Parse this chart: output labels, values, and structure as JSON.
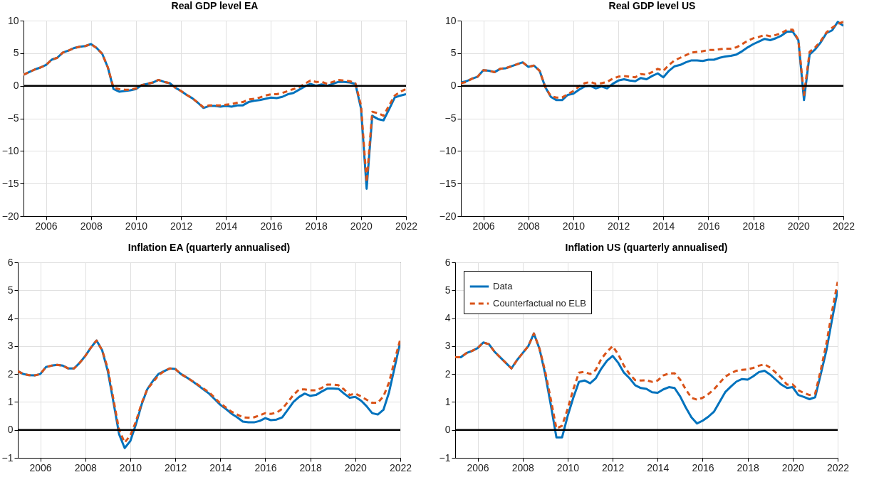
{
  "chart_data": [
    {
      "type": "line",
      "title": "Real GDP level EA",
      "xlim": [
        2005,
        2022
      ],
      "xticks": [
        2006,
        2008,
        2010,
        2012,
        2014,
        2016,
        2018,
        2020,
        2022
      ],
      "ylim": [
        -20,
        10
      ],
      "yticks": [
        -20,
        -15,
        -10,
        -5,
        0,
        5,
        10
      ],
      "grid": true,
      "x": [
        2005,
        2005.25,
        2005.5,
        2005.75,
        2006,
        2006.25,
        2006.5,
        2006.75,
        2007,
        2007.25,
        2007.5,
        2007.75,
        2008,
        2008.25,
        2008.5,
        2008.75,
        2009,
        2009.25,
        2009.5,
        2009.75,
        2010,
        2010.25,
        2010.5,
        2010.75,
        2011,
        2011.25,
        2011.5,
        2011.75,
        2012,
        2012.25,
        2012.5,
        2012.75,
        2013,
        2013.25,
        2013.5,
        2013.75,
        2014,
        2014.25,
        2014.5,
        2014.75,
        2015,
        2015.25,
        2015.5,
        2015.75,
        2016,
        2016.25,
        2016.5,
        2016.75,
        2017,
        2017.25,
        2017.5,
        2017.75,
        2018,
        2018.25,
        2018.5,
        2018.75,
        2019,
        2019.25,
        2019.5,
        2019.75,
        2020,
        2020.25,
        2020.5,
        2020.75,
        2021,
        2021.25,
        2021.5,
        2021.75,
        2022
      ],
      "ref_lines": [
        {
          "axis": "y",
          "value": 0,
          "color": "#000000"
        }
      ],
      "series": [
        {
          "color": "#0072bd",
          "line_style": "solid",
          "values": [
            1.7,
            2.1,
            2.5,
            2.8,
            3.2,
            4.0,
            4.3,
            5.1,
            5.4,
            5.8,
            6.0,
            6.1,
            6.4,
            5.8,
            4.9,
            2.8,
            -0.5,
            -0.9,
            -0.8,
            -0.7,
            -0.5,
            0.1,
            0.3,
            0.5,
            0.9,
            0.6,
            0.4,
            -0.3,
            -0.8,
            -1.4,
            -1.9,
            -2.6,
            -3.4,
            -3.1,
            -3.1,
            -3.2,
            -3.1,
            -3.2,
            -3.0,
            -3.0,
            -2.5,
            -2.3,
            -2.2,
            -2.0,
            -1.8,
            -1.9,
            -1.7,
            -1.3,
            -1.1,
            -0.6,
            -0.1,
            0.3,
            0.0,
            0.2,
            0.0,
            0.3,
            0.6,
            0.6,
            0.5,
            0.3,
            -3.5,
            -15.8,
            -4.6,
            -5.1,
            -5.3,
            -3.6,
            -1.8,
            -1.5,
            -1.3
          ]
        },
        {
          "color": "#d95319",
          "line_style": "dashed",
          "values": [
            1.7,
            2.1,
            2.5,
            2.8,
            3.2,
            4.0,
            4.3,
            5.1,
            5.4,
            5.8,
            6.0,
            6.1,
            6.4,
            5.8,
            4.9,
            2.8,
            -0.3,
            -0.5,
            -0.6,
            -0.6,
            -0.4,
            0.1,
            0.3,
            0.5,
            0.9,
            0.6,
            0.4,
            -0.3,
            -0.8,
            -1.4,
            -1.9,
            -2.6,
            -3.3,
            -3.0,
            -3.0,
            -3.0,
            -2.9,
            -2.8,
            -2.6,
            -2.5,
            -2.1,
            -2.0,
            -1.8,
            -1.5,
            -1.3,
            -1.3,
            -1.1,
            -0.8,
            -0.5,
            -0.2,
            0.3,
            0.8,
            0.6,
            0.6,
            0.3,
            0.6,
            0.9,
            0.8,
            0.7,
            0.4,
            -3.0,
            -14.8,
            -4.0,
            -4.2,
            -4.6,
            -3.0,
            -1.5,
            -0.9,
            -0.5
          ]
        }
      ]
    },
    {
      "type": "line",
      "title": "Real GDP level US",
      "xlim": [
        2005,
        2022
      ],
      "xticks": [
        2006,
        2008,
        2010,
        2012,
        2014,
        2016,
        2018,
        2020,
        2022
      ],
      "ylim": [
        -20,
        10
      ],
      "yticks": [
        -20,
        -15,
        -10,
        -5,
        0,
        5,
        10
      ],
      "grid": true,
      "x": [
        2005,
        2005.25,
        2005.5,
        2005.75,
        2006,
        2006.25,
        2006.5,
        2006.75,
        2007,
        2007.25,
        2007.5,
        2007.75,
        2008,
        2008.25,
        2008.5,
        2008.75,
        2009,
        2009.25,
        2009.5,
        2009.75,
        2010,
        2010.25,
        2010.5,
        2010.75,
        2011,
        2011.25,
        2011.5,
        2011.75,
        2012,
        2012.25,
        2012.5,
        2012.75,
        2013,
        2013.25,
        2013.5,
        2013.75,
        2014,
        2014.25,
        2014.5,
        2014.75,
        2015,
        2015.25,
        2015.5,
        2015.75,
        2016,
        2016.25,
        2016.5,
        2016.75,
        2017,
        2017.25,
        2017.5,
        2017.75,
        2018,
        2018.25,
        2018.5,
        2018.75,
        2019,
        2019.25,
        2019.5,
        2019.75,
        2020,
        2020.25,
        2020.5,
        2020.75,
        2021,
        2021.25,
        2021.5,
        2021.75,
        2022
      ],
      "ref_lines": [
        {
          "axis": "y",
          "value": 0,
          "color": "#000000"
        }
      ],
      "series": [
        {
          "color": "#0072bd",
          "line_style": "solid",
          "values": [
            0.5,
            0.7,
            1.1,
            1.4,
            2.4,
            2.3,
            2.1,
            2.6,
            2.7,
            3.0,
            3.3,
            3.6,
            2.9,
            3.1,
            2.3,
            -0.2,
            -1.7,
            -2.2,
            -2.2,
            -1.4,
            -1.2,
            -0.6,
            -0.1,
            0.0,
            -0.4,
            -0.1,
            -0.4,
            0.3,
            0.8,
            1.0,
            0.8,
            0.7,
            1.2,
            1.0,
            1.5,
            1.9,
            1.3,
            2.3,
            3.0,
            3.2,
            3.6,
            3.9,
            3.9,
            3.8,
            4.0,
            4.0,
            4.3,
            4.5,
            4.6,
            4.8,
            5.3,
            5.9,
            6.4,
            6.8,
            7.2,
            7.0,
            7.3,
            7.7,
            8.3,
            8.3,
            7.0,
            -2.2,
            4.8,
            5.6,
            6.7,
            8.1,
            8.5,
            9.8,
            9.2
          ]
        },
        {
          "color": "#d95319",
          "line_style": "dashed",
          "values": [
            0.4,
            0.6,
            1.1,
            1.4,
            2.4,
            2.3,
            2.1,
            2.6,
            2.7,
            3.0,
            3.3,
            3.6,
            2.9,
            3.1,
            2.3,
            -0.2,
            -1.6,
            -1.8,
            -1.8,
            -1.3,
            -0.8,
            -0.1,
            0.4,
            0.6,
            0.3,
            0.4,
            0.6,
            1.1,
            1.4,
            1.5,
            1.4,
            1.3,
            1.8,
            1.7,
            2.1,
            2.6,
            2.3,
            3.2,
            3.9,
            4.3,
            4.7,
            5.1,
            5.2,
            5.3,
            5.5,
            5.5,
            5.6,
            5.7,
            5.7,
            5.9,
            6.4,
            6.9,
            7.3,
            7.5,
            7.8,
            7.6,
            7.8,
            8.1,
            8.6,
            8.6,
            7.0,
            -1.4,
            5.2,
            5.9,
            6.9,
            8.2,
            8.9,
            9.5,
            9.8
          ]
        }
      ]
    },
    {
      "type": "line",
      "title": "Inflation EA (quarterly annualised)",
      "xlim": [
        2005,
        2022
      ],
      "xticks": [
        2006,
        2008,
        2010,
        2012,
        2014,
        2016,
        2018,
        2020,
        2022
      ],
      "ylim": [
        -1,
        6
      ],
      "yticks": [
        -1,
        0,
        1,
        2,
        3,
        4,
        5,
        6
      ],
      "grid": true,
      "x": [
        2005,
        2005.25,
        2005.5,
        2005.75,
        2006,
        2006.25,
        2006.5,
        2006.75,
        2007,
        2007.25,
        2007.5,
        2007.75,
        2008,
        2008.25,
        2008.5,
        2008.75,
        2009,
        2009.25,
        2009.5,
        2009.75,
        2010,
        2010.25,
        2010.5,
        2010.75,
        2011,
        2011.25,
        2011.5,
        2011.75,
        2012,
        2012.25,
        2012.5,
        2012.75,
        2013,
        2013.25,
        2013.5,
        2013.75,
        2014,
        2014.25,
        2014.5,
        2014.75,
        2015,
        2015.25,
        2015.5,
        2015.75,
        2016,
        2016.25,
        2016.5,
        2016.75,
        2017,
        2017.25,
        2017.5,
        2017.75,
        2018,
        2018.25,
        2018.5,
        2018.75,
        2019,
        2019.25,
        2019.5,
        2019.75,
        2020,
        2020.25,
        2020.5,
        2020.75,
        2021,
        2021.25,
        2021.5,
        2021.75,
        2022
      ],
      "ref_lines": [
        {
          "axis": "y",
          "value": 0,
          "color": "#000000"
        }
      ],
      "series": [
        {
          "color": "#0072bd",
          "line_style": "solid",
          "values": [
            2.1,
            2.0,
            1.96,
            1.95,
            2.0,
            2.25,
            2.3,
            2.33,
            2.3,
            2.2,
            2.2,
            2.4,
            2.65,
            2.95,
            3.2,
            2.85,
            2.1,
            1.0,
            -0.15,
            -0.65,
            -0.4,
            0.2,
            0.9,
            1.45,
            1.75,
            2.0,
            2.1,
            2.2,
            2.18,
            2.0,
            1.88,
            1.75,
            1.6,
            1.45,
            1.3,
            1.1,
            0.9,
            0.75,
            0.58,
            0.45,
            0.3,
            0.27,
            0.27,
            0.32,
            0.42,
            0.35,
            0.37,
            0.45,
            0.72,
            1.0,
            1.18,
            1.3,
            1.22,
            1.25,
            1.37,
            1.48,
            1.48,
            1.47,
            1.3,
            1.15,
            1.18,
            1.05,
            0.85,
            0.6,
            0.55,
            0.72,
            1.35,
            2.25,
            3.15
          ]
        },
        {
          "color": "#d95319",
          "line_style": "dashed",
          "values": [
            2.1,
            2.0,
            1.96,
            1.95,
            2.0,
            2.25,
            2.3,
            2.33,
            2.3,
            2.2,
            2.2,
            2.4,
            2.65,
            2.95,
            3.2,
            2.85,
            2.2,
            1.1,
            0.0,
            -0.45,
            -0.2,
            0.3,
            0.95,
            1.45,
            1.7,
            1.95,
            2.1,
            2.2,
            2.18,
            2.0,
            1.88,
            1.75,
            1.62,
            1.48,
            1.35,
            1.15,
            0.95,
            0.8,
            0.65,
            0.55,
            0.45,
            0.44,
            0.45,
            0.52,
            0.6,
            0.57,
            0.62,
            0.75,
            1.0,
            1.25,
            1.45,
            1.45,
            1.42,
            1.42,
            1.5,
            1.62,
            1.62,
            1.6,
            1.45,
            1.25,
            1.3,
            1.2,
            1.08,
            0.97,
            0.97,
            1.2,
            1.7,
            2.5,
            3.25
          ]
        }
      ]
    },
    {
      "type": "line",
      "title": "Inflation US (quarterly annualised)",
      "xlim": [
        2005,
        2022
      ],
      "xticks": [
        2006,
        2008,
        2010,
        2012,
        2014,
        2016,
        2018,
        2020,
        2022
      ],
      "ylim": [
        -1,
        6
      ],
      "yticks": [
        -1,
        0,
        1,
        2,
        3,
        4,
        5,
        6
      ],
      "grid": true,
      "legend": "top left",
      "x": [
        2005,
        2005.25,
        2005.5,
        2005.75,
        2006,
        2006.25,
        2006.5,
        2006.75,
        2007,
        2007.25,
        2007.5,
        2007.75,
        2008,
        2008.25,
        2008.5,
        2008.75,
        2009,
        2009.25,
        2009.5,
        2009.75,
        2010,
        2010.25,
        2010.5,
        2010.75,
        2011,
        2011.25,
        2011.5,
        2011.75,
        2012,
        2012.25,
        2012.5,
        2012.75,
        2013,
        2013.25,
        2013.5,
        2013.75,
        2014,
        2014.25,
        2014.5,
        2014.75,
        2015,
        2015.25,
        2015.5,
        2015.75,
        2016,
        2016.25,
        2016.5,
        2016.75,
        2017,
        2017.25,
        2017.5,
        2017.75,
        2018,
        2018.25,
        2018.5,
        2018.75,
        2019,
        2019.25,
        2019.5,
        2019.75,
        2020,
        2020.25,
        2020.5,
        2020.75,
        2021,
        2021.25,
        2021.5,
        2021.75,
        2022
      ],
      "ref_lines": [
        {
          "axis": "y",
          "value": 0,
          "color": "#000000"
        }
      ],
      "series": [
        {
          "name": "Data",
          "color": "#0072bd",
          "line_style": "solid",
          "values": [
            2.6,
            2.6,
            2.75,
            2.83,
            2.93,
            3.13,
            3.07,
            2.8,
            2.6,
            2.4,
            2.2,
            2.5,
            2.75,
            3.0,
            3.45,
            2.9,
            2.0,
            0.9,
            -0.27,
            -0.27,
            0.5,
            1.15,
            1.72,
            1.77,
            1.67,
            1.85,
            2.2,
            2.48,
            2.65,
            2.4,
            2.05,
            1.85,
            1.6,
            1.5,
            1.47,
            1.35,
            1.33,
            1.45,
            1.53,
            1.5,
            1.2,
            0.8,
            0.45,
            0.23,
            0.33,
            0.47,
            0.65,
            1.0,
            1.35,
            1.55,
            1.73,
            1.82,
            1.8,
            1.92,
            2.07,
            2.12,
            1.98,
            1.8,
            1.62,
            1.5,
            1.53,
            1.25,
            1.18,
            1.1,
            1.17,
            2.0,
            2.85,
            3.95,
            5.0
          ]
        },
        {
          "name": "Counterfactual no ELB",
          "color": "#d95319",
          "line_style": "dashed",
          "values": [
            2.6,
            2.6,
            2.75,
            2.83,
            2.93,
            3.13,
            3.07,
            2.8,
            2.6,
            2.4,
            2.2,
            2.5,
            2.75,
            3.0,
            3.45,
            2.9,
            2.1,
            1.1,
            0.05,
            0.15,
            0.75,
            1.45,
            2.05,
            2.08,
            2.0,
            2.15,
            2.55,
            2.8,
            3.0,
            2.7,
            2.3,
            2.0,
            1.78,
            1.77,
            1.78,
            1.72,
            1.77,
            1.95,
            2.02,
            2.03,
            1.8,
            1.45,
            1.15,
            1.08,
            1.15,
            1.28,
            1.45,
            1.68,
            1.9,
            2.03,
            2.12,
            2.15,
            2.17,
            2.22,
            2.3,
            2.35,
            2.23,
            2.05,
            1.85,
            1.62,
            1.63,
            1.42,
            1.32,
            1.25,
            1.3,
            2.15,
            3.1,
            4.25,
            5.3
          ]
        }
      ]
    }
  ]
}
